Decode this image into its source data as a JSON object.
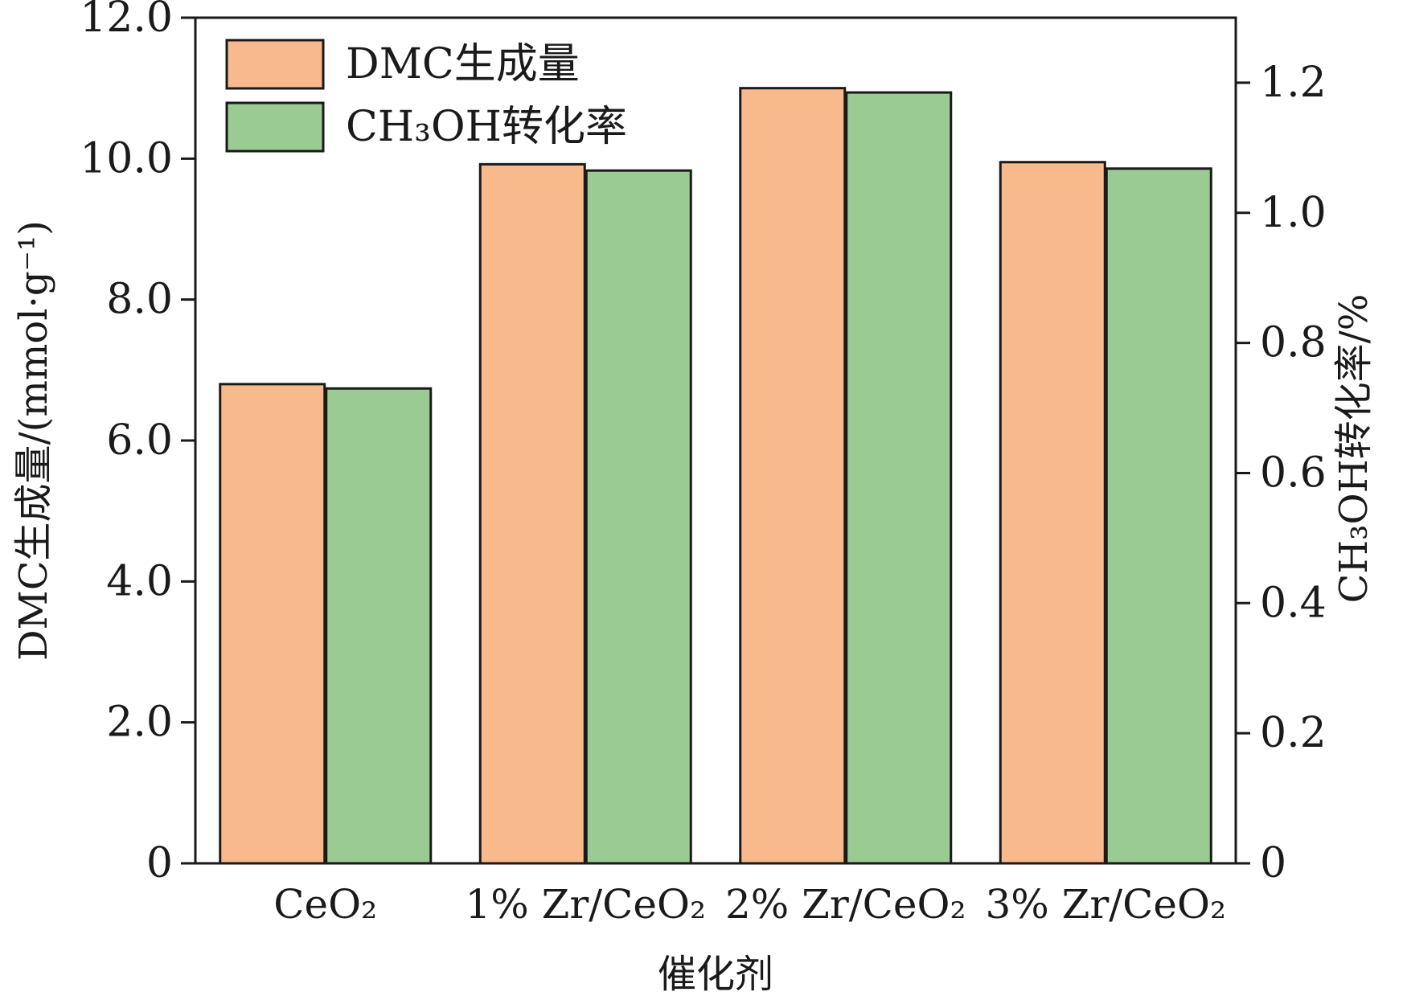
{
  "chart_data": {
    "type": "bar",
    "categories": [
      "CeO₂",
      "1% Zr/CeO₂",
      "2% Zr/CeO₂",
      "3% Zr/CeO₂"
    ],
    "series": [
      {
        "name": "DMC生成量",
        "axis": "left",
        "color": "#F8BA8C",
        "values": [
          6.8,
          9.92,
          11.0,
          9.95
        ]
      },
      {
        "name": "CH₃OH转化率",
        "axis": "right",
        "color": "#9ACB93",
        "values": [
          0.73,
          1.065,
          1.185,
          1.068
        ]
      }
    ],
    "xlabel": "催化剂",
    "ylabel_left": "DMC生成量/(mmol·g⁻¹)",
    "ylabel_right": "CH₃OH转化率/%",
    "ylim_left": [
      0,
      12.0
    ],
    "ylim_right": [
      0,
      1.3
    ],
    "yticks_left": [
      "0",
      "2.0",
      "4.0",
      "6.0",
      "8.0",
      "10.0",
      "12.0"
    ],
    "yticks_left_values": [
      0,
      2,
      4,
      6,
      8,
      10,
      12
    ],
    "yticks_right": [
      "0",
      "0.2",
      "0.4",
      "0.6",
      "0.8",
      "1.0",
      "1.2"
    ],
    "yticks_right_values": [
      0,
      0.2,
      0.4,
      0.6,
      0.8,
      1.0,
      1.2
    ],
    "legend_position": "top-left",
    "grid": false
  }
}
